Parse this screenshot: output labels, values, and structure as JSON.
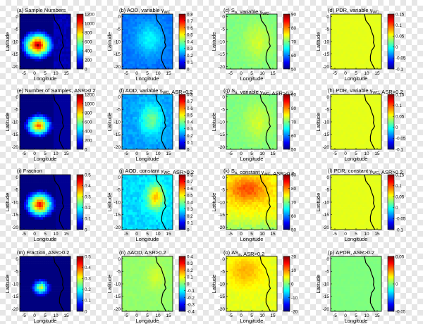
{
  "colors": {
    "jet": [
      "#00007f",
      "#0000ff",
      "#007fff",
      "#00ffff",
      "#7fff7f",
      "#ffff00",
      "#ff7f00",
      "#ff0000",
      "#7f0000"
    ],
    "coastline": "#000000"
  },
  "common": {
    "xlabel": "Longitude",
    "ylabel": "Latitude",
    "xticks": [
      "-5",
      "0",
      "5",
      "10",
      "15"
    ],
    "xtick_values": [
      -5,
      0,
      5,
      10,
      15
    ],
    "yticks": [
      "0",
      "-5",
      "-10",
      "-15",
      "-20"
    ],
    "ytick_values": [
      0,
      -5,
      -10,
      -15,
      -20
    ],
    "xlim": [
      -7,
      17
    ],
    "ylim": [
      -21,
      1
    ],
    "coastline_lonlat": [
      [
        9.0,
        1.0
      ],
      [
        9.6,
        -1.5
      ],
      [
        11.6,
        -3.8
      ],
      [
        12.3,
        -5.8
      ],
      [
        13.2,
        -7.8
      ],
      [
        13.4,
        -9.2
      ],
      [
        13.2,
        -10.4
      ],
      [
        13.8,
        -11.8
      ],
      [
        12.4,
        -13.6
      ],
      [
        11.8,
        -15.8
      ],
      [
        11.8,
        -17.6
      ],
      [
        12.6,
        -19.0
      ],
      [
        13.6,
        -20.6
      ],
      [
        14.0,
        -21.0
      ]
    ]
  },
  "chart_data": [
    {
      "id": "a",
      "title": "(a) Sample Numbers",
      "title_parts": {
        "pre": "(a) Sample Numbers",
        "sub": "",
        "post": ""
      },
      "type": "heatmap",
      "pattern": "samples",
      "values_sample": {
        "center": 1200,
        "edge": 0
      },
      "clim": [
        0,
        1200
      ],
      "cbar_ticks": [
        "0",
        "200",
        "400",
        "600",
        "800",
        "1000",
        "1200"
      ],
      "coastline": true,
      "xlabel": "Longitude",
      "ylabel": "Latitude"
    },
    {
      "id": "b",
      "title": "(b) AOD, variable γWC",
      "title_parts": {
        "pre": "(b) AOD, variable γ",
        "sub": "WC",
        "post": ""
      },
      "type": "heatmap",
      "pattern": "aod",
      "values_sample": {
        "center": 0.35,
        "edge": 0.2
      },
      "clim": [
        0,
        0.8
      ],
      "cbar_ticks": [
        "0",
        "0.1",
        "0.2",
        "0.3",
        "0.4",
        "0.5",
        "0.6",
        "0.7",
        "0.8"
      ],
      "coastline": true,
      "xlabel": "Longitude",
      "ylabel": "Latitude"
    },
    {
      "id": "c",
      "title": "(c) Sa, variable γWC",
      "title_parts": {
        "pre": "(c) S",
        "sub": "a",
        "post": ", variable γ",
        "sub2": "WC"
      },
      "type": "heatmap",
      "pattern": "sa",
      "values_sample": {
        "center": 72,
        "edge": 68
      },
      "clim": [
        50,
        90
      ],
      "cbar_ticks": [
        "50",
        "60",
        "70",
        "80",
        "90"
      ],
      "coastline": true,
      "xlabel": "Longitude",
      "ylabel": "Latitude"
    },
    {
      "id": "d",
      "title": "(d) PDR, variable γWC",
      "title_parts": {
        "pre": "(d) PDR, variable γ",
        "sub": "WC",
        "post": ""
      },
      "type": "heatmap",
      "pattern": "pdr",
      "values_sample": {
        "center": 0.05,
        "edge": 0.05
      },
      "clim": [
        -0.1,
        0.15
      ],
      "cbar_ticks": [
        "-0.1",
        "-0.05",
        "0",
        "0.05",
        "0.1",
        "0.15"
      ],
      "coastline": true,
      "xlabel": "Longitude",
      "ylabel": "Latitude"
    },
    {
      "id": "e",
      "title": "(e) Number of Samples, ASR>0.2",
      "title_parts": {
        "pre": "(e) Number of Samples, ASR>0.2",
        "sub": "",
        "post": ""
      },
      "type": "heatmap",
      "pattern": "samples2",
      "values_sample": {
        "center": 1000,
        "edge": 0
      },
      "clim": [
        0,
        1200
      ],
      "cbar_ticks": [
        "0",
        "200",
        "400",
        "600",
        "800",
        "1000",
        "1200"
      ],
      "coastline": true,
      "xlabel": "Longitude",
      "ylabel": "Latitude"
    },
    {
      "id": "f",
      "title": "(f) AOD, variable γWC, ASR>0.2",
      "title_parts": {
        "pre": "(f) AOD, variable γ",
        "sub": "WC",
        "post": ", ASR>0.2"
      },
      "type": "heatmap",
      "pattern": "aod2",
      "values_sample": {
        "center": 0.4,
        "edge": 0.25
      },
      "clim": [
        0,
        0.8
      ],
      "cbar_ticks": [
        "0",
        "0.1",
        "0.2",
        "0.3",
        "0.4",
        "0.5",
        "0.6",
        "0.7",
        "0.8"
      ],
      "coastline": true,
      "xlabel": "Longitude",
      "ylabel": "Latitude"
    },
    {
      "id": "g",
      "title": "(g) Sa, variable γWC, ASR>0.2",
      "title_parts": {
        "pre": "(g) S",
        "sub": "a",
        "post": ", variable γ",
        "sub2": "WC",
        "post2": ", ASR>0.2"
      },
      "type": "heatmap",
      "pattern": "sa",
      "values_sample": {
        "center": 72,
        "edge": 68
      },
      "clim": [
        50,
        90
      ],
      "cbar_ticks": [
        "50",
        "60",
        "70",
        "80",
        "90"
      ],
      "coastline": true,
      "xlabel": "Longitude",
      "ylabel": "Latitude"
    },
    {
      "id": "h",
      "title": "(h) PDR, variable γWC, ASR>0.2",
      "title_parts": {
        "pre": "(h) PDR, variable γ",
        "sub": "WC",
        "post": ", ASR>0.2"
      },
      "type": "heatmap",
      "pattern": "pdr",
      "values_sample": {
        "center": 0.05,
        "edge": 0.05
      },
      "clim": [
        -0.1,
        0.15
      ],
      "cbar_ticks": [
        "-0.1",
        "-0.05",
        "0",
        "0.05",
        "0.1",
        "0.15"
      ],
      "coastline": true,
      "xlabel": "Longitude",
      "ylabel": "Latitude"
    },
    {
      "id": "i",
      "title": "(i) Fraction",
      "title_parts": {
        "pre": "(i) Fraction",
        "sub": "",
        "post": ""
      },
      "type": "heatmap",
      "pattern": "fraction",
      "values_sample": {
        "center": 0.45,
        "edge": 0.0
      },
      "clim": [
        0,
        0.5
      ],
      "cbar_ticks": [
        "0",
        "0.1",
        "0.2",
        "0.3",
        "0.4",
        "0.5"
      ],
      "coastline": true,
      "xlabel": "Longitude",
      "ylabel": "Latitude"
    },
    {
      "id": "j",
      "title": "(j) AOD, constant γWC, ASR>0.2",
      "title_parts": {
        "pre": "(j) AOD, constant γ",
        "sub": "WC",
        "post": ", ASR>0.2"
      },
      "type": "heatmap",
      "pattern": "aod3",
      "values_sample": {
        "center": 0.55,
        "edge": 0.3
      },
      "clim": [
        0,
        0.8
      ],
      "cbar_ticks": [
        "0",
        "0.1",
        "0.2",
        "0.3",
        "0.4",
        "0.5",
        "0.6",
        "0.7",
        "0.8"
      ],
      "coastline": true,
      "xlabel": "Longitude",
      "ylabel": "Latitude"
    },
    {
      "id": "k",
      "title": "(k) Sa, constant γWC, ASR>0.2",
      "title_parts": {
        "pre": "(k) S",
        "sub": "a",
        "post": ", constant γ",
        "sub2": "WC",
        "post2": ", ASR>0.2"
      },
      "type": "heatmap",
      "pattern": "sa2",
      "values_sample": {
        "center": 80,
        "edge": 72
      },
      "clim": [
        50,
        90
      ],
      "cbar_ticks": [
        "50",
        "60",
        "70",
        "80",
        "90"
      ],
      "coastline": true,
      "xlabel": "Longitude",
      "ylabel": "Latitude"
    },
    {
      "id": "l",
      "title": "(l) PDR, constant γWC, ASR>0.2",
      "title_parts": {
        "pre": "(l) PDR, constant γ",
        "sub": "WC",
        "post": ", ASR>0.2"
      },
      "type": "heatmap",
      "pattern": "pdr",
      "values_sample": {
        "center": 0.05,
        "edge": 0.05
      },
      "clim": [
        -0.1,
        0.15
      ],
      "cbar_ticks": [
        "-0.1",
        "-0.05",
        "0",
        "0.05",
        "0.1",
        "0.15"
      ],
      "coastline": true,
      "xlabel": "Longitude",
      "ylabel": "Latitude"
    },
    {
      "id": "m",
      "title": "(m) Fraction, ASR>0.2",
      "title_parts": {
        "pre": "(m) Fraction, ASR>0.2",
        "sub": "",
        "post": ""
      },
      "type": "heatmap",
      "pattern": "fraction2",
      "values_sample": {
        "center": 0.3,
        "edge": 0.0
      },
      "clim": [
        0,
        0.5
      ],
      "cbar_ticks": [
        "0",
        "0.1",
        "0.2",
        "0.3",
        "0.4",
        "0.5"
      ],
      "coastline": true,
      "xlabel": "Longitude",
      "ylabel": "Latitude"
    },
    {
      "id": "n",
      "title": "(n) ΔAOD, ASR>0.2",
      "title_parts": {
        "pre": "(n) ΔAOD, ASR>0.2",
        "sub": "",
        "post": ""
      },
      "type": "heatmap",
      "pattern": "daod",
      "values_sample": {
        "center": 0.02,
        "edge": 0.0
      },
      "clim": [
        -0.4,
        0.4
      ],
      "cbar_ticks": [
        "-0.4",
        "-0.3",
        "-0.2",
        "-0.1",
        "0",
        "0.1",
        "0.2",
        "0.3",
        "0.4"
      ],
      "coastline": true,
      "xlabel": "Longitude",
      "ylabel": "Latitude"
    },
    {
      "id": "o",
      "title": "(o) ΔSa, ASR>0.2",
      "title_parts": {
        "pre": "(o) ΔS",
        "sub": "a",
        "post": ", ASR>0.2"
      },
      "type": "heatmap",
      "pattern": "dsa",
      "values_sample": {
        "center": 5,
        "edge": 2
      },
      "clim": [
        -20,
        20
      ],
      "cbar_ticks": [
        "-20",
        "-10",
        "0",
        "10",
        "20"
      ],
      "coastline": true,
      "xlabel": "Longitude",
      "ylabel": "Latitude"
    },
    {
      "id": "p",
      "title": "(p) ΔPDR, ASR>0.2",
      "title_parts": {
        "pre": "(p) ΔPDR, ASR>0.2",
        "sub": "",
        "post": ""
      },
      "type": "heatmap",
      "pattern": "dpdr",
      "values_sample": {
        "center": 0.0,
        "edge": 0.0
      },
      "clim": [
        -0.05,
        0.05
      ],
      "cbar_ticks": [
        "-0.05",
        "0",
        "0.05"
      ],
      "coastline": true,
      "xlabel": "Longitude",
      "ylabel": "Latitude"
    }
  ]
}
